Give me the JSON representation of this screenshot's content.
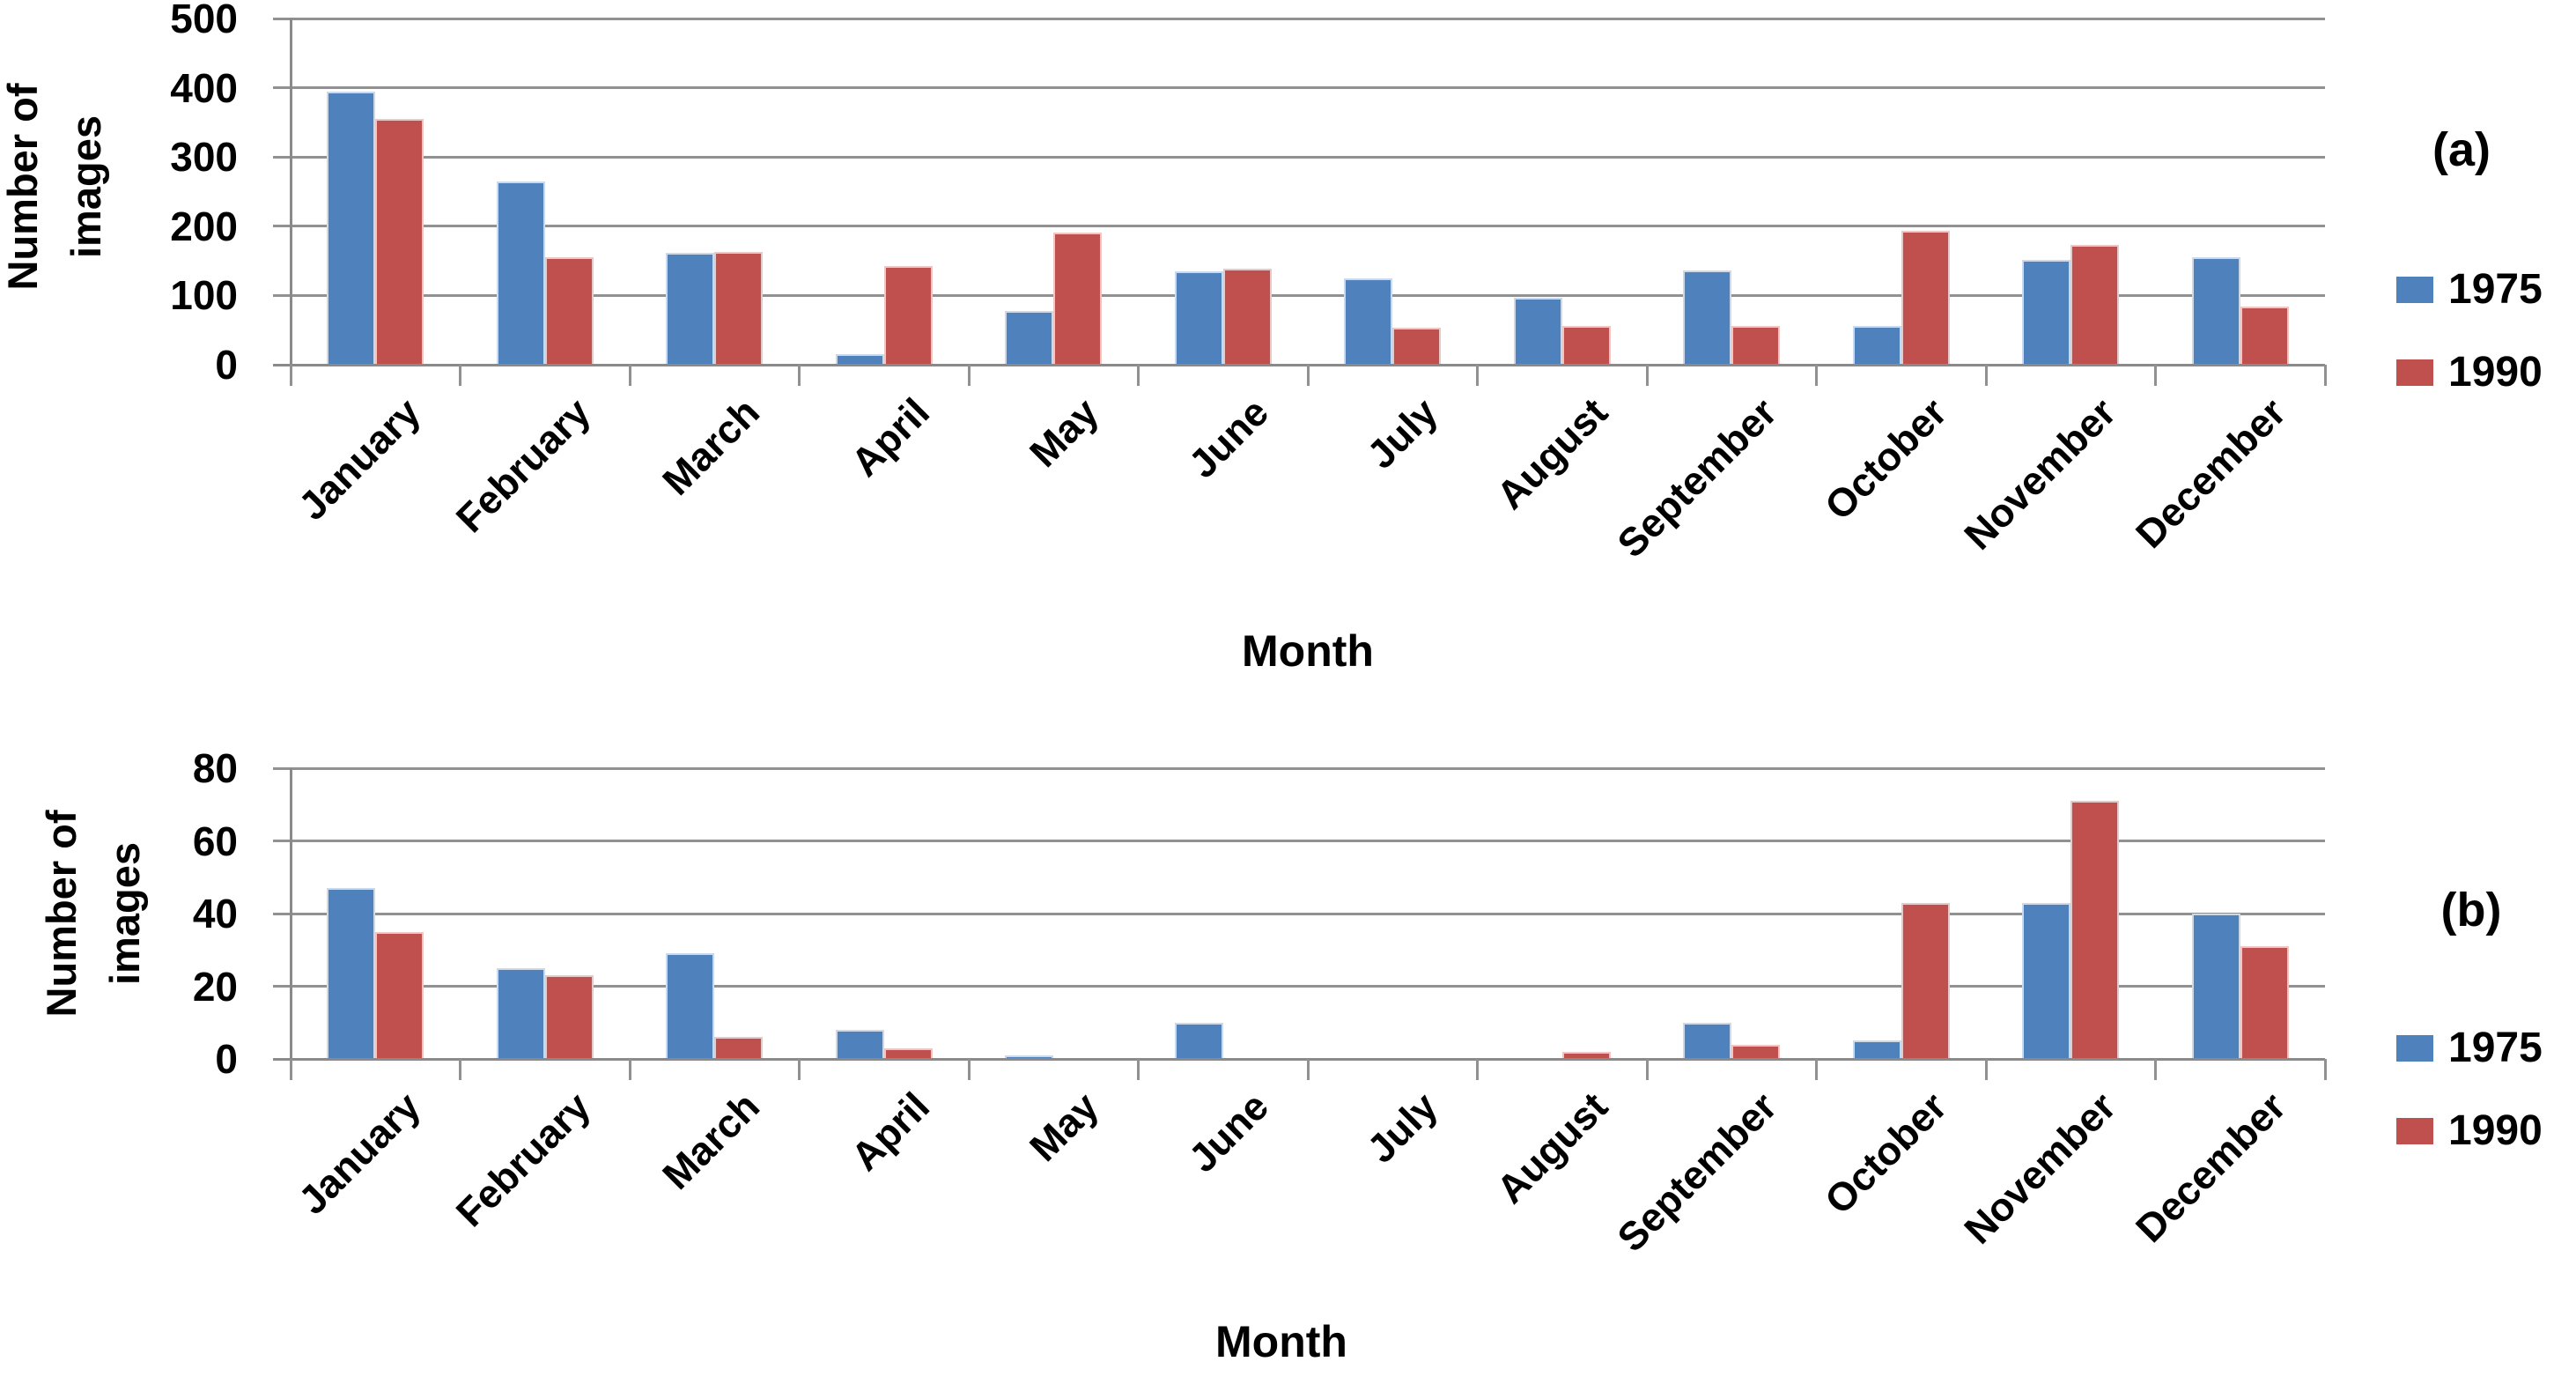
{
  "figure": {
    "background": "#ffffff",
    "grid_color": "#919191",
    "axis_color": "#8a8a8a",
    "text_color": "#000000",
    "series_colors": {
      "y1975": "#4F81BD",
      "y1990": "#C0504D"
    }
  },
  "chart_data": [
    {
      "type": "bar",
      "panel_label": "(a)",
      "title": "",
      "xlabel": "Month",
      "ylabel": "Number of images",
      "ylabel_lines": [
        "Number of",
        "images"
      ],
      "categories": [
        "January",
        "February",
        "March",
        "April",
        "May",
        "June",
        "July",
        "August",
        "September",
        "October",
        "November",
        "December"
      ],
      "series": [
        {
          "name": "1975",
          "color": "#4F81BD",
          "border": "#ccd9eb",
          "values": [
            395,
            265,
            162,
            15,
            77,
            135,
            125,
            97,
            136,
            56,
            152,
            155
          ]
        },
        {
          "name": "1990",
          "color": "#C0504D",
          "border": "#e9c8c6",
          "values": [
            355,
            155,
            163,
            142,
            191,
            139,
            53,
            56,
            56,
            194,
            173,
            84
          ]
        }
      ],
      "ylim": [
        0,
        500
      ],
      "y_ticks": [
        0,
        100,
        200,
        300,
        400,
        500
      ],
      "grid": true,
      "legend_position": "right",
      "legend_entries": [
        "1975",
        "1990"
      ]
    },
    {
      "type": "bar",
      "panel_label": "(b)",
      "title": "",
      "xlabel": "Month",
      "ylabel": "Number of images",
      "ylabel_lines": [
        "Number of",
        "images"
      ],
      "categories": [
        "January",
        "February",
        "March",
        "April",
        "May",
        "June",
        "July",
        "August",
        "September",
        "October",
        "November",
        "December"
      ],
      "series": [
        {
          "name": "1975",
          "color": "#4F81BD",
          "border": "#ccd9eb",
          "values": [
            47,
            25,
            29,
            8,
            1,
            10,
            0,
            0,
            10,
            5,
            43,
            40
          ]
        },
        {
          "name": "1990",
          "color": "#C0504D",
          "border": "#e9c8c6",
          "values": [
            35,
            23,
            6,
            3,
            0,
            0,
            0,
            2,
            4,
            43,
            71,
            31
          ]
        }
      ],
      "ylim": [
        0,
        80
      ],
      "y_ticks": [
        0,
        20,
        40,
        60,
        80
      ],
      "grid": true,
      "legend_position": "right",
      "legend_entries": [
        "1975",
        "1990"
      ]
    }
  ]
}
